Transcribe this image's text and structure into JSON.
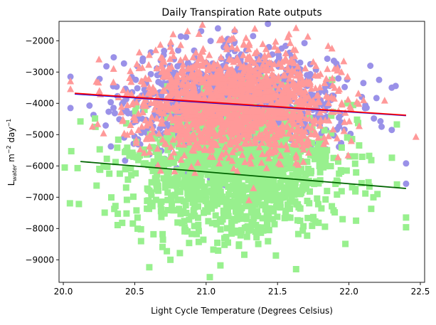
{
  "chart_data": {
    "type": "scatter",
    "title": "Daily Transpiration Rate outputs",
    "xlabel": "Light Cycle Temperature (Degrees Celsius)",
    "ylabel": {
      "base": "L",
      "sub": "water",
      "rest1": " m",
      "sup1": "−2",
      "rest2": " day",
      "sup2": "−1"
    },
    "xlim": [
      19.97,
      22.53
    ],
    "ylim": [
      -9720,
      -1380
    ],
    "xticks": [
      20.0,
      20.5,
      21.0,
      21.5,
      22.0,
      22.5
    ],
    "xtick_labels": [
      "20.0",
      "20.5",
      "21.0",
      "21.5",
      "22.0",
      "22.5"
    ],
    "yticks": [
      -2000,
      -3000,
      -4000,
      -5000,
      -6000,
      -7000,
      -8000,
      -9000
    ],
    "ytick_labels": [
      "−2000",
      "−3000",
      "−4000",
      "−5000",
      "−6000",
      "−7000",
      "−8000",
      "−9000"
    ],
    "grid": false,
    "legend": "none",
    "series": [
      {
        "marker": "circle",
        "color": "#9a91e8",
        "cloud": {
          "x_mean": 21.2,
          "x_sd": 0.35,
          "y_mean": -4050,
          "y_sd": 780,
          "n": 1400
        },
        "outliers": [
          {
            "x": 20.05,
            "y": -3150
          },
          {
            "x": 20.05,
            "y": -4150
          },
          {
            "x": 20.86,
            "y": -1880
          },
          {
            "x": 21.2,
            "y": -1700
          },
          {
            "x": 22.3,
            "y": -3500
          },
          {
            "x": 22.4,
            "y": -5920
          },
          {
            "x": 22.4,
            "y": -6570
          },
          {
            "x": 22.3,
            "y": -4850
          },
          {
            "x": 22.15,
            "y": -2800
          }
        ],
        "trend": {
          "x": [
            20.08,
            22.4
          ],
          "y": [
            -3700,
            -4390
          ],
          "color": "#0000ff"
        }
      },
      {
        "marker": "square",
        "color": "#98f08e",
        "cloud": {
          "x_mean": 21.2,
          "x_sd": 0.36,
          "y_mean": -6150,
          "y_sd": 1050,
          "n": 1400
        },
        "outliers": [
          {
            "x": 20.12,
            "y": -4580
          },
          {
            "x": 20.1,
            "y": -6070
          },
          {
            "x": 22.4,
            "y": -7650
          },
          {
            "x": 22.4,
            "y": -7960
          },
          {
            "x": 21.1,
            "y": -9180
          },
          {
            "x": 21.63,
            "y": -9300
          },
          {
            "x": 20.75,
            "y": -9000
          },
          {
            "x": 22.2,
            "y": -6900
          }
        ],
        "trend": {
          "x": [
            20.12,
            22.4
          ],
          "y": [
            -5860,
            -6720
          ],
          "color": "#006400"
        }
      },
      {
        "marker": "triangle",
        "color": "#ff9999",
        "cloud": {
          "x_mean": 21.2,
          "x_sd": 0.34,
          "y_mean": -4000,
          "y_sd": 800,
          "n": 1600
        },
        "outliers": [
          {
            "x": 20.05,
            "y": -3550
          },
          {
            "x": 20.05,
            "y": -3300
          },
          {
            "x": 20.87,
            "y": -1700
          },
          {
            "x": 21.2,
            "y": -1650
          },
          {
            "x": 21.3,
            "y": -7100
          },
          {
            "x": 20.25,
            "y": -2600
          }
        ],
        "trend": {
          "x": [
            20.08,
            22.4
          ],
          "y": [
            -3680,
            -4380
          ],
          "color": "#ff0000"
        }
      }
    ]
  }
}
